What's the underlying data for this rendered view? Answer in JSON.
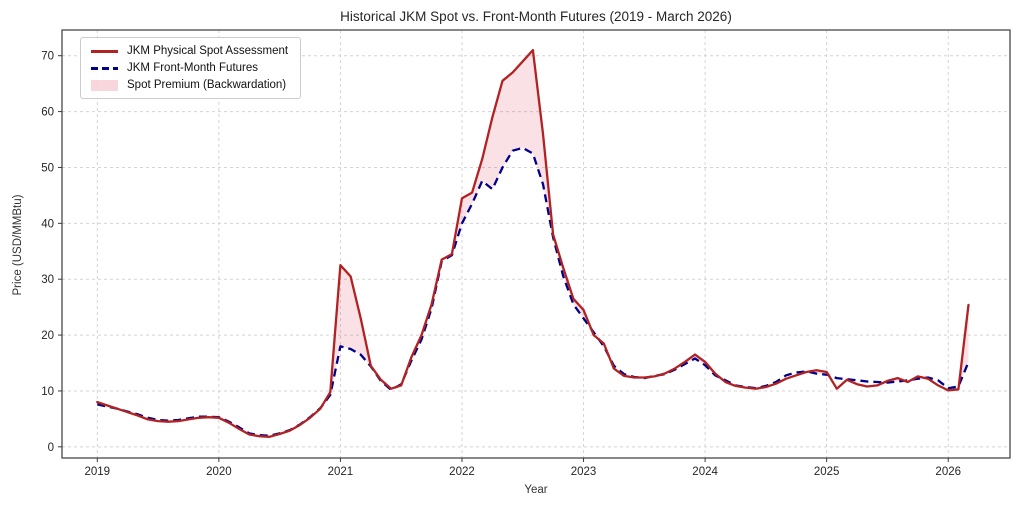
{
  "chart_data": {
    "type": "line",
    "title": "Historical JKM Spot vs. Front-Month Futures (2019 - March 2026)",
    "xlabel": "Year",
    "ylabel": "Price (USD/MMBtu)",
    "x_start": "2019-01",
    "x_end": "2026-03",
    "frequency": "monthly",
    "x_tick_labels": [
      "2019",
      "2020",
      "2021",
      "2022",
      "2023",
      "2024",
      "2025",
      "2026"
    ],
    "y_ticks": [
      0,
      10,
      20,
      30,
      40,
      50,
      60,
      70
    ],
    "ylim": [
      -2,
      74.6
    ],
    "grid": true,
    "grid_style": "dashed",
    "legend_position": "upper left",
    "series": [
      {
        "name": "JKM Physical Spot Assessment",
        "color": "#B22222",
        "style": "solid",
        "values": [
          8.0,
          7.4,
          6.8,
          6.2,
          5.6,
          4.9,
          4.6,
          4.5,
          4.6,
          4.9,
          5.2,
          5.3,
          5.2,
          4.3,
          3.2,
          2.2,
          1.9,
          1.8,
          2.3,
          2.9,
          3.9,
          5.2,
          6.8,
          9.8,
          32.5,
          30.5,
          23.0,
          14.5,
          12.0,
          10.4,
          11.0,
          16.0,
          20.0,
          25.5,
          33.5,
          34.5,
          44.5,
          45.5,
          51.5,
          59.0,
          65.5,
          67.0,
          69.0,
          71.0,
          56.0,
          38.0,
          32.0,
          26.5,
          24.5,
          20.0,
          18.5,
          14.0,
          12.7,
          12.4,
          12.4,
          12.6,
          13.1,
          14.0,
          15.2,
          16.5,
          15.2,
          13.1,
          11.6,
          10.9,
          10.6,
          10.4,
          10.7,
          11.3,
          12.2,
          12.8,
          13.4,
          13.7,
          13.4,
          10.4,
          12.0,
          11.2,
          10.8,
          11.0,
          11.8,
          12.3,
          11.6,
          12.6,
          12.2,
          11.0,
          10.1,
          10.3,
          25.4
        ]
      },
      {
        "name": "JKM Front-Month Futures",
        "color": "#00008B",
        "style": "dashed",
        "values": [
          7.6,
          7.2,
          6.8,
          6.3,
          5.8,
          5.2,
          4.8,
          4.7,
          4.8,
          5.1,
          5.4,
          5.4,
          5.3,
          4.5,
          3.5,
          2.4,
          2.1,
          2.0,
          2.4,
          3.0,
          4.0,
          5.3,
          6.9,
          9.3,
          18.0,
          17.5,
          16.5,
          14.4,
          11.8,
          10.2,
          11.2,
          15.4,
          19.2,
          24.8,
          33.2,
          34.3,
          40.0,
          43.5,
          47.6,
          46.1,
          50.0,
          53.0,
          53.5,
          52.5,
          47.0,
          37.5,
          30.5,
          25.5,
          23.0,
          20.5,
          18.0,
          14.5,
          13.0,
          12.5,
          12.3,
          12.7,
          13.0,
          13.8,
          14.8,
          15.8,
          14.6,
          12.8,
          11.9,
          11.0,
          10.7,
          10.5,
          10.9,
          11.6,
          12.8,
          13.3,
          13.5,
          13.1,
          12.9,
          12.3,
          12.1,
          11.9,
          11.7,
          11.6,
          11.5,
          11.7,
          11.9,
          12.2,
          12.4,
          11.9,
          10.5,
          10.8,
          15.2
        ]
      }
    ],
    "fill": {
      "label": "Spot Premium (Backwardation)",
      "color": "#DC143C",
      "opacity": 0.13,
      "rule": "where spot > futures"
    }
  }
}
